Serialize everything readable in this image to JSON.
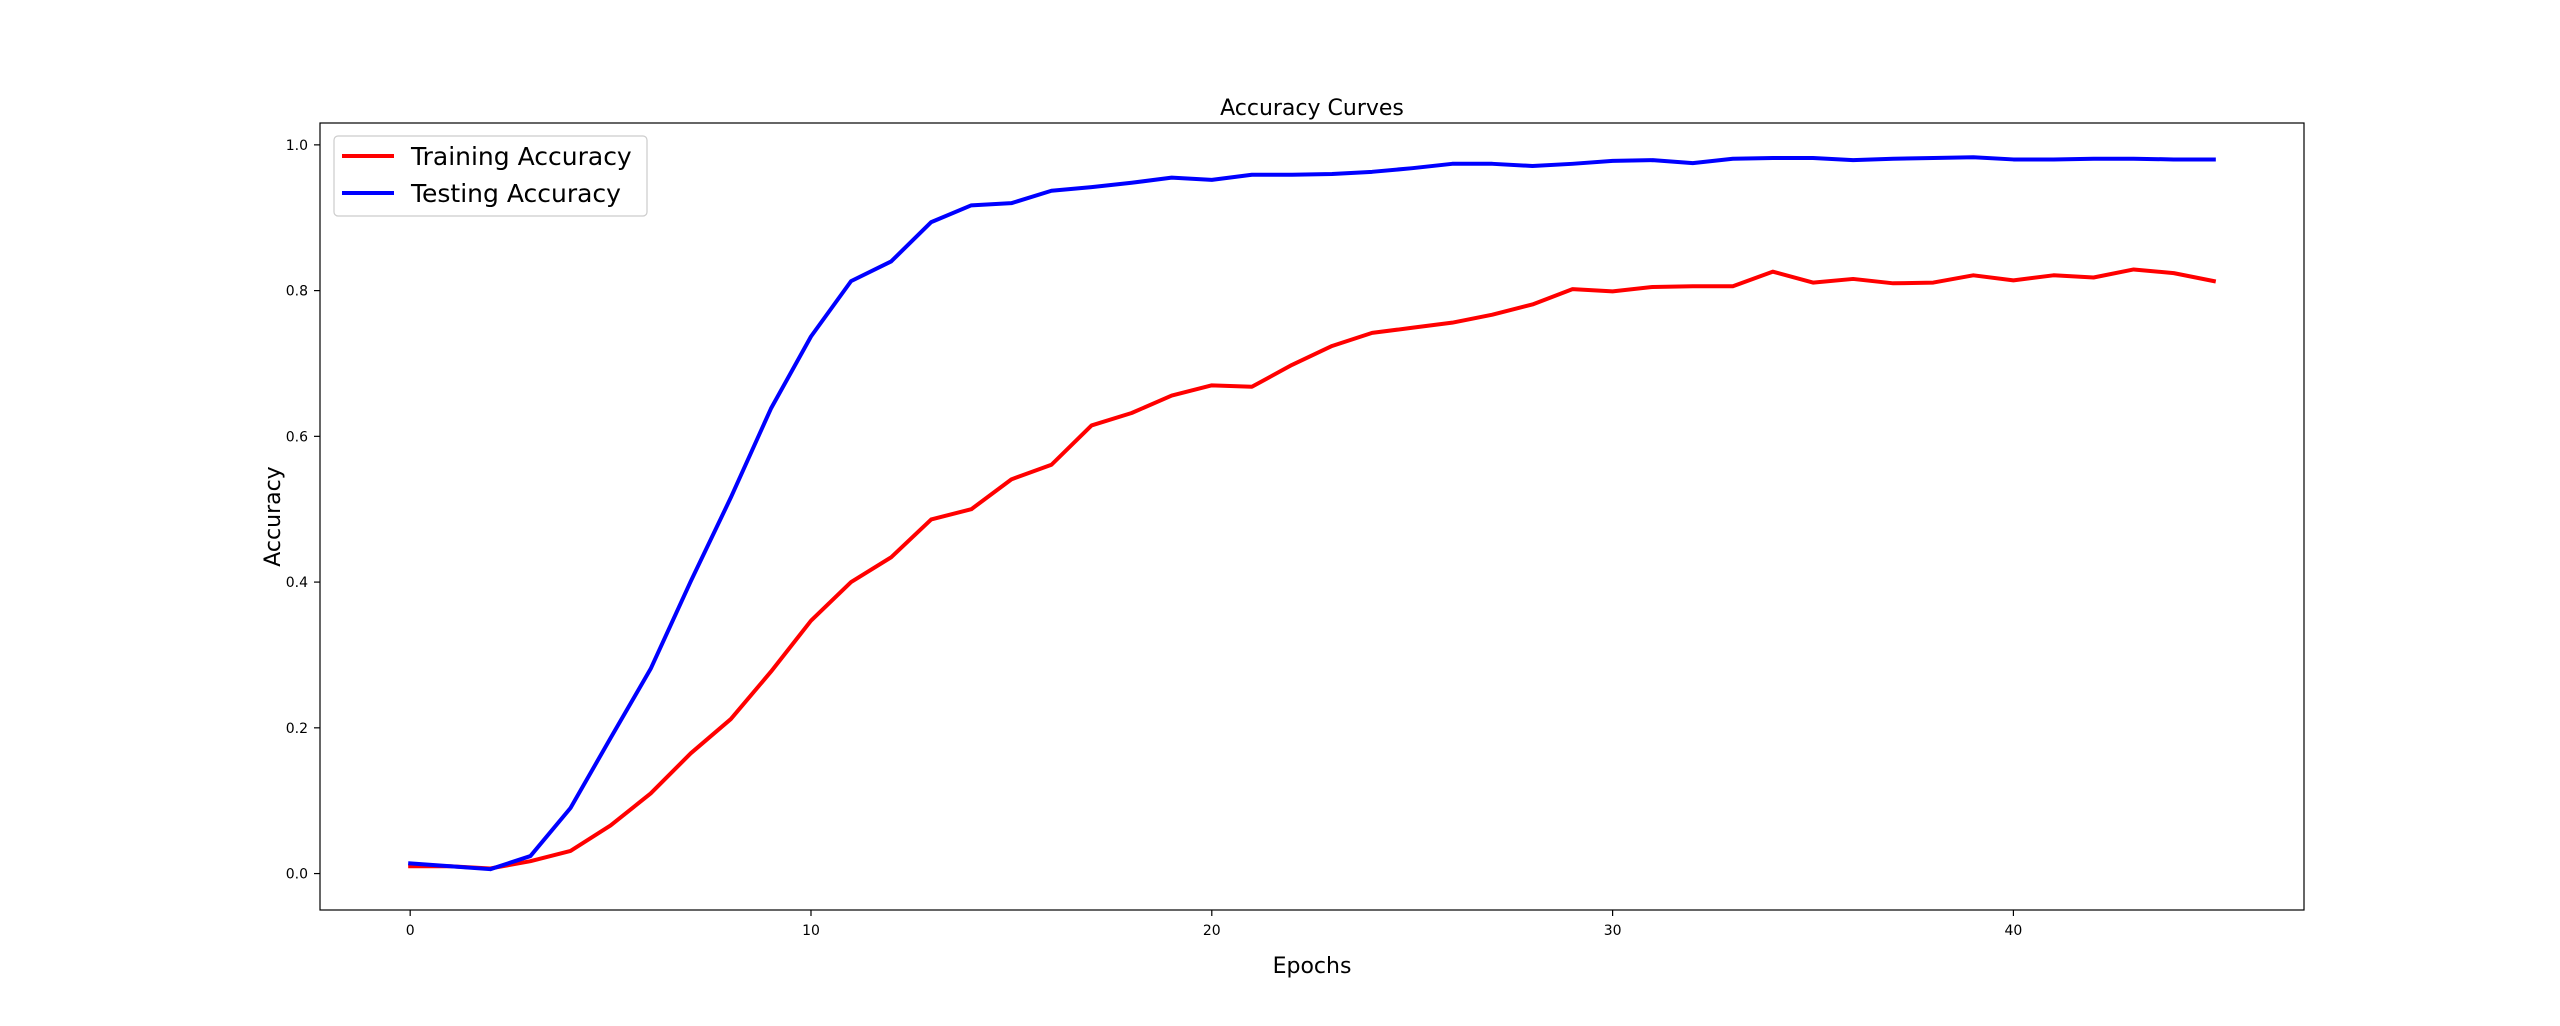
{
  "chart_data": {
    "type": "line",
    "title": "Accuracy Curves",
    "xlabel": "Epochs",
    "ylabel": "Accuracy",
    "xlim": [
      -2.25,
      47.25
    ],
    "ylim": [
      -0.05,
      1.03
    ],
    "xticks": [
      0,
      10,
      20,
      30,
      40
    ],
    "yticks": [
      0.0,
      0.2,
      0.4,
      0.6,
      0.8,
      1.0
    ],
    "xtick_labels": [
      "0",
      "10",
      "20",
      "30",
      "40"
    ],
    "ytick_labels": [
      "0.0",
      "0.2",
      "0.4",
      "0.6",
      "0.8",
      "1.0"
    ],
    "grid": false,
    "legend_position": "upper left",
    "x": [
      0,
      1,
      2,
      3,
      4,
      5,
      6,
      7,
      8,
      9,
      10,
      11,
      12,
      13,
      14,
      15,
      16,
      17,
      18,
      19,
      20,
      21,
      22,
      23,
      24,
      25,
      26,
      27,
      28,
      29,
      30,
      31,
      32,
      33,
      34,
      35,
      36,
      37,
      38,
      39,
      40,
      41,
      42,
      43,
      44,
      45
    ],
    "series": [
      {
        "name": "Training Accuracy",
        "color": "#ff0000",
        "values": [
          0.01,
          0.01,
          0.007,
          0.017,
          0.031,
          0.066,
          0.11,
          0.165,
          0.212,
          0.277,
          0.347,
          0.4,
          0.434,
          0.486,
          0.5,
          0.541,
          0.561,
          0.615,
          0.632,
          0.656,
          0.67,
          0.668,
          0.698,
          0.724,
          0.742,
          0.749,
          0.756,
          0.767,
          0.781,
          0.802,
          0.799,
          0.805,
          0.806,
          0.806,
          0.826,
          0.811,
          0.816,
          0.81,
          0.811,
          0.821,
          0.814,
          0.821,
          0.818,
          0.829,
          0.824,
          0.813
        ]
      },
      {
        "name": "Testing Accuracy",
        "color": "#0000ff",
        "values": [
          0.014,
          0.01,
          0.006,
          0.024,
          0.09,
          0.186,
          0.281,
          0.401,
          0.516,
          0.638,
          0.737,
          0.813,
          0.84,
          0.894,
          0.917,
          0.92,
          0.937,
          0.942,
          0.948,
          0.955,
          0.952,
          0.959,
          0.959,
          0.96,
          0.963,
          0.968,
          0.974,
          0.974,
          0.971,
          0.974,
          0.978,
          0.979,
          0.975,
          0.981,
          0.982,
          0.982,
          0.979,
          0.981,
          0.982,
          0.983,
          0.98,
          0.98,
          0.981,
          0.981,
          0.98,
          0.98
        ]
      }
    ]
  }
}
